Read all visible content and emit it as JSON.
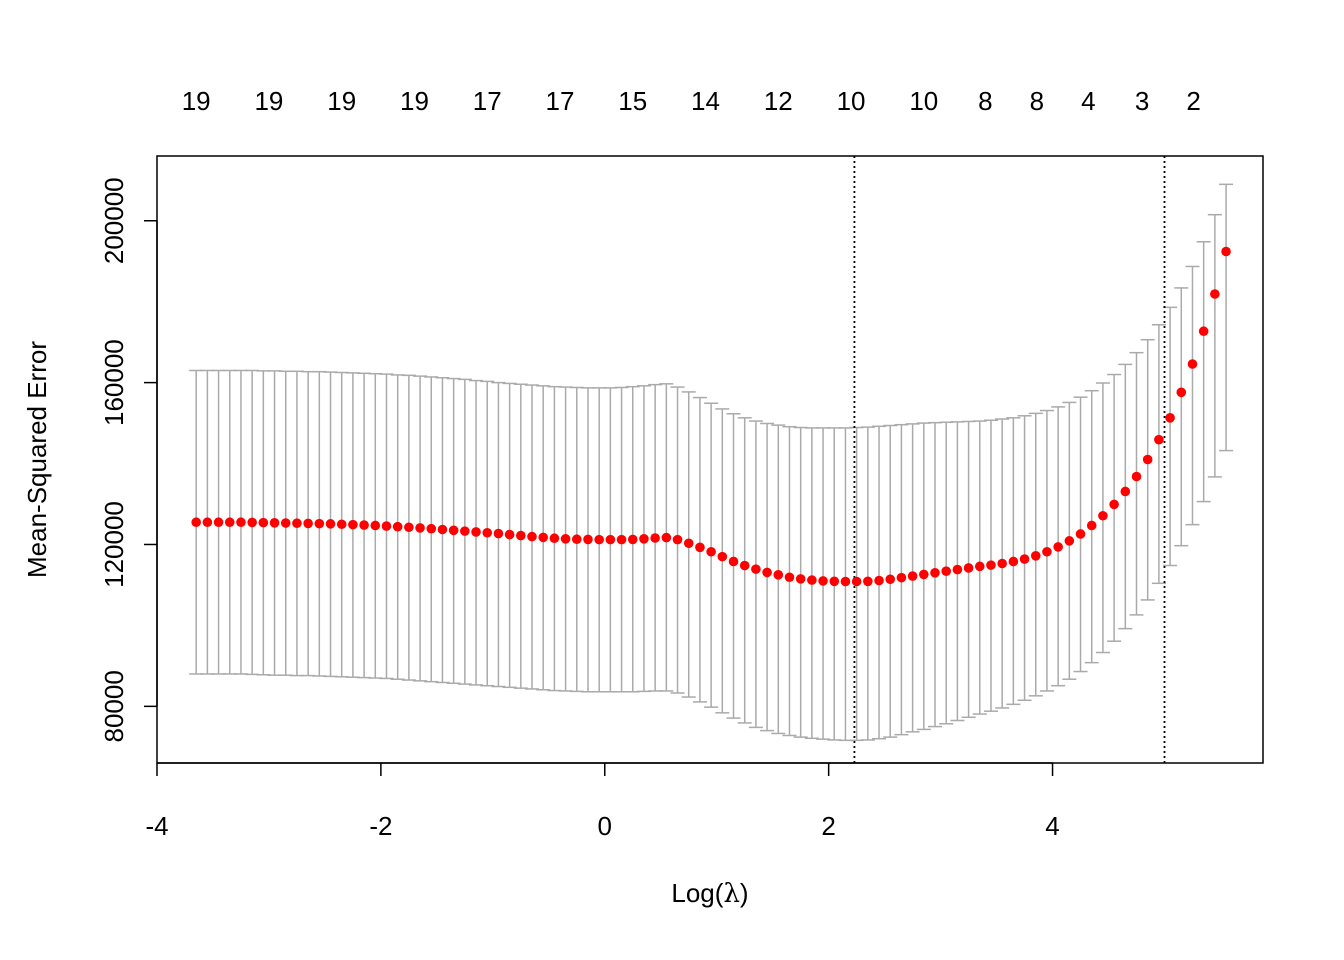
{
  "chart_data": {
    "type": "scatter",
    "xlabel_prefix": "Log(",
    "xlabel_symbol": "λ",
    "xlabel_suffix": ")",
    "ylabel": "Mean-Squared Error",
    "xlim": [
      -4,
      5.88
    ],
    "ylim": [
      66000,
      216000
    ],
    "x_ticks": [
      -4,
      -2,
      0,
      2,
      4
    ],
    "x_tick_labels": [
      "-4",
      "-2",
      "0",
      "2",
      "4"
    ],
    "y_ticks": [
      80000,
      120000,
      160000,
      200000
    ],
    "y_tick_labels": [
      "80000",
      "120000",
      "160000",
      "200000"
    ],
    "top_labels": [
      {
        "x": -3.65,
        "label": "19"
      },
      {
        "x": -3.0,
        "label": "19"
      },
      {
        "x": -2.35,
        "label": "19"
      },
      {
        "x": -1.7,
        "label": "19"
      },
      {
        "x": -1.05,
        "label": "17"
      },
      {
        "x": -0.4,
        "label": "17"
      },
      {
        "x": 0.25,
        "label": "15"
      },
      {
        "x": 0.9,
        "label": "14"
      },
      {
        "x": 1.55,
        "label": "12"
      },
      {
        "x": 2.2,
        "label": "10"
      },
      {
        "x": 2.85,
        "label": "10"
      },
      {
        "x": 3.4,
        "label": "8"
      },
      {
        "x": 3.86,
        "label": "8"
      },
      {
        "x": 4.32,
        "label": "4"
      },
      {
        "x": 4.8,
        "label": "3"
      },
      {
        "x": 5.26,
        "label": "2"
      }
    ],
    "vlines": [
      2.23,
      5.0
    ],
    "point_color": "#ff0000",
    "errorbar_color": "#aaaaaa",
    "frame_color": "#000000",
    "log_lambda": [
      -3.65,
      -3.55,
      -3.45,
      -3.35,
      -3.25,
      -3.15,
      -3.05,
      -2.95,
      -2.85,
      -2.75,
      -2.65,
      -2.55,
      -2.45,
      -2.35,
      -2.25,
      -2.15,
      -2.05,
      -1.95,
      -1.85,
      -1.75,
      -1.65,
      -1.55,
      -1.45,
      -1.35,
      -1.25,
      -1.15,
      -1.05,
      -0.95,
      -0.85,
      -0.75,
      -0.65,
      -0.55,
      -0.45,
      -0.35,
      -0.25,
      -0.15,
      -0.05,
      0.05,
      0.15,
      0.25,
      0.35,
      0.45,
      0.55,
      0.65,
      0.75,
      0.85,
      0.95,
      1.05,
      1.15,
      1.25,
      1.35,
      1.45,
      1.55,
      1.65,
      1.75,
      1.85,
      1.95,
      2.05,
      2.15,
      2.25,
      2.35,
      2.45,
      2.55,
      2.65,
      2.75,
      2.85,
      2.95,
      3.05,
      3.15,
      3.25,
      3.35,
      3.45,
      3.55,
      3.65,
      3.75,
      3.85,
      3.95,
      4.05,
      4.15,
      4.25,
      4.35,
      4.45,
      4.55,
      4.65,
      4.75,
      4.85,
      4.95,
      5.05,
      5.15,
      5.25,
      5.35,
      5.45,
      5.55
    ],
    "mse": [
      125500,
      125500,
      125500,
      125500,
      125500,
      125450,
      125400,
      125350,
      125300,
      125250,
      125200,
      125150,
      125100,
      125000,
      124900,
      124800,
      124700,
      124550,
      124400,
      124250,
      124100,
      123900,
      123700,
      123500,
      123300,
      123100,
      122900,
      122700,
      122450,
      122200,
      121950,
      121750,
      121550,
      121400,
      121300,
      121250,
      121200,
      121200,
      121200,
      121250,
      121400,
      121600,
      121700,
      121200,
      120300,
      119300,
      118200,
      117000,
      115800,
      114800,
      113900,
      113100,
      112500,
      111900,
      111500,
      111200,
      111000,
      110900,
      110850,
      110850,
      110900,
      111100,
      111400,
      111800,
      112200,
      112600,
      113000,
      113400,
      113800,
      114200,
      114600,
      114900,
      115300,
      115800,
      116400,
      117200,
      118200,
      119400,
      120900,
      122600,
      124700,
      127100,
      129900,
      133100,
      136800,
      141000,
      145900,
      151300,
      157600,
      164600,
      172700,
      181900,
      192400
    ],
    "upper": [
      163000,
      163000,
      163000,
      163000,
      163000,
      163000,
      162900,
      162900,
      162800,
      162800,
      162700,
      162700,
      162600,
      162500,
      162400,
      162300,
      162200,
      162100,
      161900,
      161800,
      161600,
      161400,
      161200,
      161000,
      160800,
      160500,
      160300,
      160000,
      159800,
      159600,
      159400,
      159200,
      159000,
      158900,
      158800,
      158700,
      158700,
      158700,
      158800,
      159000,
      159200,
      159500,
      159700,
      158900,
      157700,
      156300,
      154900,
      153500,
      152300,
      151300,
      150500,
      149900,
      149500,
      149100,
      148900,
      148800,
      148800,
      148800,
      148800,
      148900,
      149000,
      149200,
      149400,
      149600,
      149800,
      150000,
      150100,
      150200,
      150300,
      150400,
      150500,
      150700,
      151000,
      151300,
      151800,
      152400,
      153100,
      154000,
      155100,
      156400,
      158000,
      159900,
      162000,
      164500,
      167400,
      170600,
      174300,
      178600,
      183400,
      188700,
      194800,
      201500,
      209000
    ],
    "lower": [
      88000,
      88000,
      88000,
      88000,
      88000,
      87900,
      87800,
      87700,
      87700,
      87600,
      87600,
      87500,
      87400,
      87300,
      87200,
      87100,
      87000,
      86900,
      86700,
      86500,
      86300,
      86100,
      85900,
      85700,
      85500,
      85300,
      85100,
      84900,
      84700,
      84500,
      84300,
      84100,
      83900,
      83800,
      83700,
      83600,
      83600,
      83600,
      83600,
      83600,
      83700,
      83800,
      83800,
      83300,
      82300,
      81100,
      79800,
      78400,
      77100,
      75900,
      74800,
      74000,
      73300,
      72800,
      72400,
      72100,
      71900,
      71700,
      71600,
      71600,
      71700,
      72000,
      72400,
      73000,
      73700,
      74300,
      75000,
      75700,
      76500,
      77300,
      78100,
      78800,
      79600,
      80500,
      81500,
      82600,
      83800,
      85100,
      86700,
      88600,
      90800,
      93300,
      96100,
      99200,
      102600,
      106300,
      110400,
      114800,
      119700,
      124900,
      130600,
      136700,
      143200
    ]
  }
}
